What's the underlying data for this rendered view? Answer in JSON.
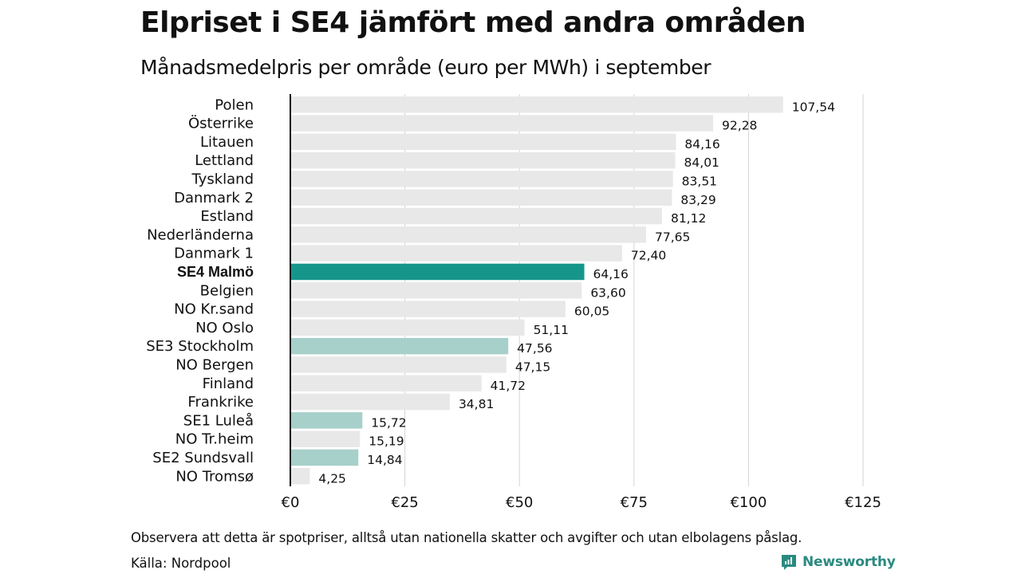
{
  "header": {
    "title": "Elpriset i SE4 jämfört med andra områden",
    "subtitle": "Månadsmedelpris per område (euro per MWh) i september"
  },
  "footer": {
    "note": "Observera att detta är spotpriser, alltså utan nationella skatter och avgifter och utan elbolagens påslag.",
    "source": "Källa: Nordpool",
    "brand": "Newsworthy"
  },
  "colors": {
    "highlight": "#16968a",
    "swedish": "#a7d0ca",
    "other": "#e8e8e8",
    "grid": "#d4d4d4",
    "axis": "#111111",
    "brand": "#2a8a80"
  },
  "chart_data": {
    "type": "bar",
    "orientation": "horizontal",
    "title": "Elpriset i SE4 jämfört med andra områden",
    "subtitle": "Månadsmedelpris per område (euro per MWh) i september",
    "xlabel": "",
    "ylabel": "",
    "xlim": [
      0,
      125
    ],
    "xticks": [
      0,
      25,
      50,
      75,
      100,
      125
    ],
    "xtick_labels": [
      "€0",
      "€25",
      "€50",
      "€75",
      "€100",
      "€125"
    ],
    "grid": "vertical",
    "categories": [
      "Polen",
      "Österrike",
      "Litauen",
      "Lettland",
      "Tyskland",
      "Danmark  2",
      "Estland",
      "Nederländerna",
      "Danmark  1",
      "SE4 Malmö",
      "Belgien",
      "NO Kr.sand",
      "NO Oslo",
      "SE3  Stockholm",
      "NO Bergen",
      "Finland",
      "Frankrike",
      "SE1  Luleå",
      "NO Tr.heim",
      "SE2  Sundsvall",
      "NO Tromsø"
    ],
    "values": [
      107.54,
      92.28,
      84.16,
      84.01,
      83.51,
      83.29,
      81.12,
      77.65,
      72.4,
      64.16,
      63.6,
      60.05,
      51.11,
      47.56,
      47.15,
      41.72,
      34.81,
      15.72,
      15.19,
      14.84,
      4.25
    ],
    "value_labels": [
      "107,54",
      "92,28",
      "84,16",
      "84,01",
      "83,51",
      "83,29",
      "81,12",
      "77,65",
      "72,40",
      "64,16",
      "63,60",
      "60,05",
      "51,11",
      "47,56",
      "47,15",
      "41,72",
      "34,81",
      "15,72",
      "15,19",
      "14,84",
      "4,25"
    ],
    "groups": [
      "other",
      "other",
      "other",
      "other",
      "other",
      "other",
      "other",
      "other",
      "other",
      "highlight",
      "other",
      "other",
      "other",
      "swedish",
      "other",
      "other",
      "other",
      "swedish",
      "other",
      "swedish",
      "other"
    ]
  }
}
